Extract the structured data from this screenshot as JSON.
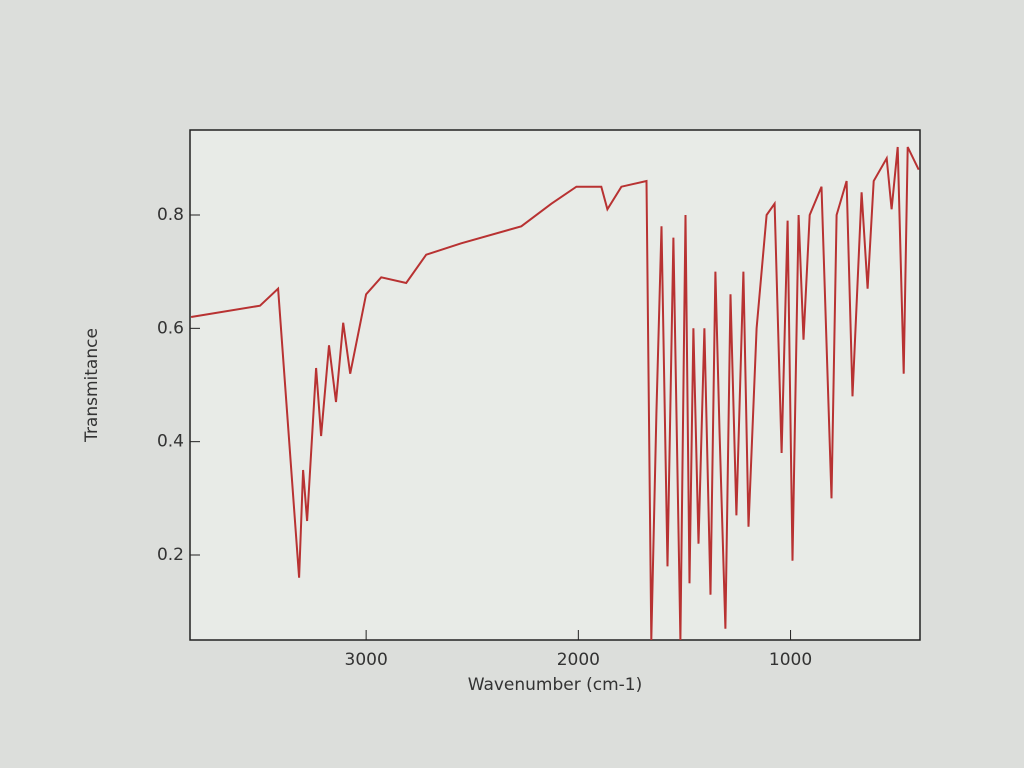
{
  "chart_data": {
    "type": "line",
    "xlabel": "Wavenumber (cm-1)",
    "ylabel": "Transmitance",
    "x": [
      3825,
      3500,
      3415,
      3316,
      3297,
      3278,
      3236,
      3212,
      3175,
      3142,
      3108,
      3075,
      3000,
      2929,
      2811,
      2717,
      2552,
      2269,
      2127,
      2009,
      1892,
      1863,
      1797,
      1679,
      1656,
      1632,
      1608,
      1580,
      1552,
      1519,
      1495,
      1476,
      1458,
      1434,
      1406,
      1377,
      1354,
      1335,
      1307,
      1283,
      1255,
      1222,
      1198,
      1160,
      1113,
      1075,
      1042,
      1014,
      991,
      962,
      939,
      910,
      854,
      807,
      783,
      736,
      708,
      665,
      637,
      608,
      547,
      524,
      495,
      467,
      448,
      396
    ],
    "values": [
      0.62,
      0.64,
      0.67,
      0.16,
      0.35,
      0.26,
      0.53,
      0.41,
      0.57,
      0.47,
      0.61,
      0.52,
      0.66,
      0.69,
      0.68,
      0.73,
      0.75,
      0.78,
      0.82,
      0.85,
      0.85,
      0.81,
      0.85,
      0.86,
      0.05,
      0.45,
      0.78,
      0.18,
      0.76,
      0.05,
      0.8,
      0.15,
      0.6,
      0.22,
      0.6,
      0.13,
      0.7,
      0.42,
      0.07,
      0.66,
      0.27,
      0.7,
      0.25,
      0.6,
      0.8,
      0.82,
      0.38,
      0.79,
      0.19,
      0.8,
      0.58,
      0.8,
      0.85,
      0.3,
      0.8,
      0.86,
      0.48,
      0.84,
      0.67,
      0.86,
      0.9,
      0.81,
      0.92,
      0.52,
      0.92,
      0.88
    ],
    "color": "#b83232",
    "xlim": [
      3830,
      390
    ],
    "xticks": [
      3000,
      2000,
      1000
    ],
    "ylim": [
      0.05,
      0.95
    ],
    "yticks": [
      0.2,
      0.4,
      0.6,
      0.8
    ]
  }
}
